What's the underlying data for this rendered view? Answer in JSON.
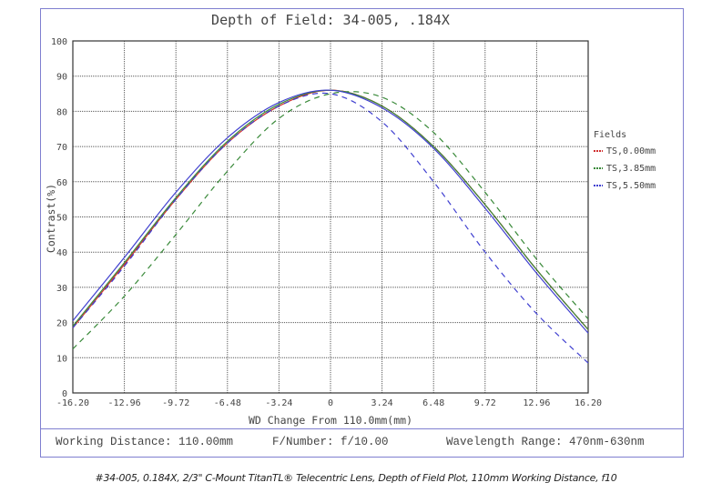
{
  "chart_data": {
    "type": "line",
    "title": "Depth of Field: 34-005, .184X",
    "xlabel": "WD Change From 110.0mm(mm)",
    "ylabel": "Contrast(%)",
    "xlim": [
      -16.2,
      16.2
    ],
    "ylim": [
      0,
      100
    ],
    "grid": true,
    "legend_title": "Fields",
    "legend_position": "right",
    "x_ticks": [
      "-16.20",
      "-12.96",
      "-9.72",
      "-6.48",
      "-3.24",
      "0",
      "3.24",
      "6.48",
      "9.72",
      "12.96",
      "16.20"
    ],
    "y_ticks": [
      "0",
      "10",
      "20",
      "30",
      "40",
      "50",
      "60",
      "70",
      "80",
      "90",
      "100"
    ],
    "x": [
      -16.2,
      -12.96,
      -9.72,
      -6.48,
      -3.24,
      0,
      3.24,
      6.48,
      9.72,
      12.96,
      16.2
    ],
    "series": [
      {
        "name": "TS,0.00mm",
        "color": "#d03030",
        "style": "solid",
        "values": [
          18.5,
          36.5,
          55,
          71,
          81.5,
          86,
          81.5,
          70,
          53.5,
          35,
          18
        ]
      },
      {
        "name": "TS,0.00mm",
        "color": "#d03030",
        "style": "dashed",
        "values": [
          18.5,
          36.5,
          55,
          71,
          81.5,
          86,
          81.5,
          70,
          53.5,
          35,
          18
        ]
      },
      {
        "name": "TS,3.85mm",
        "color": "#3a8a3a",
        "style": "solid",
        "values": [
          19,
          37,
          55.5,
          71.5,
          82,
          86,
          81.5,
          70,
          53.5,
          35,
          18
        ]
      },
      {
        "name": "TS,3.85mm",
        "color": "#3a8a3a",
        "style": "dashed",
        "values": [
          12.5,
          27.5,
          45,
          63,
          78,
          85,
          84,
          74,
          57,
          38,
          21
        ]
      },
      {
        "name": "TS,5.50mm",
        "color": "#4040d0",
        "style": "solid",
        "values": [
          20.5,
          38.5,
          57,
          72.5,
          82.5,
          86,
          81,
          69.5,
          52.5,
          34,
          17
        ]
      },
      {
        "name": "TS,5.50mm",
        "color": "#4040d0",
        "style": "dashed",
        "values": [
          18.5,
          36,
          55,
          71,
          81.5,
          85,
          77,
          60,
          40,
          22.5,
          8.5
        ]
      }
    ],
    "legend": [
      {
        "label": "TS,0.00mm",
        "color": "#d03030"
      },
      {
        "label": "TS,3.85mm",
        "color": "#3a8a3a"
      },
      {
        "label": "TS,5.50mm",
        "color": "#4040d0"
      }
    ]
  },
  "info": {
    "working_distance": "Working Distance: 110.00mm",
    "f_number": "F/Number: f/10.00",
    "wavelength": "Wavelength Range: 470nm-630nm"
  },
  "caption": "#34-005, 0.184X, 2/3\" C-Mount TitanTL® Telecentric Lens, Depth of Field Plot, 110mm Working Distance, f10"
}
